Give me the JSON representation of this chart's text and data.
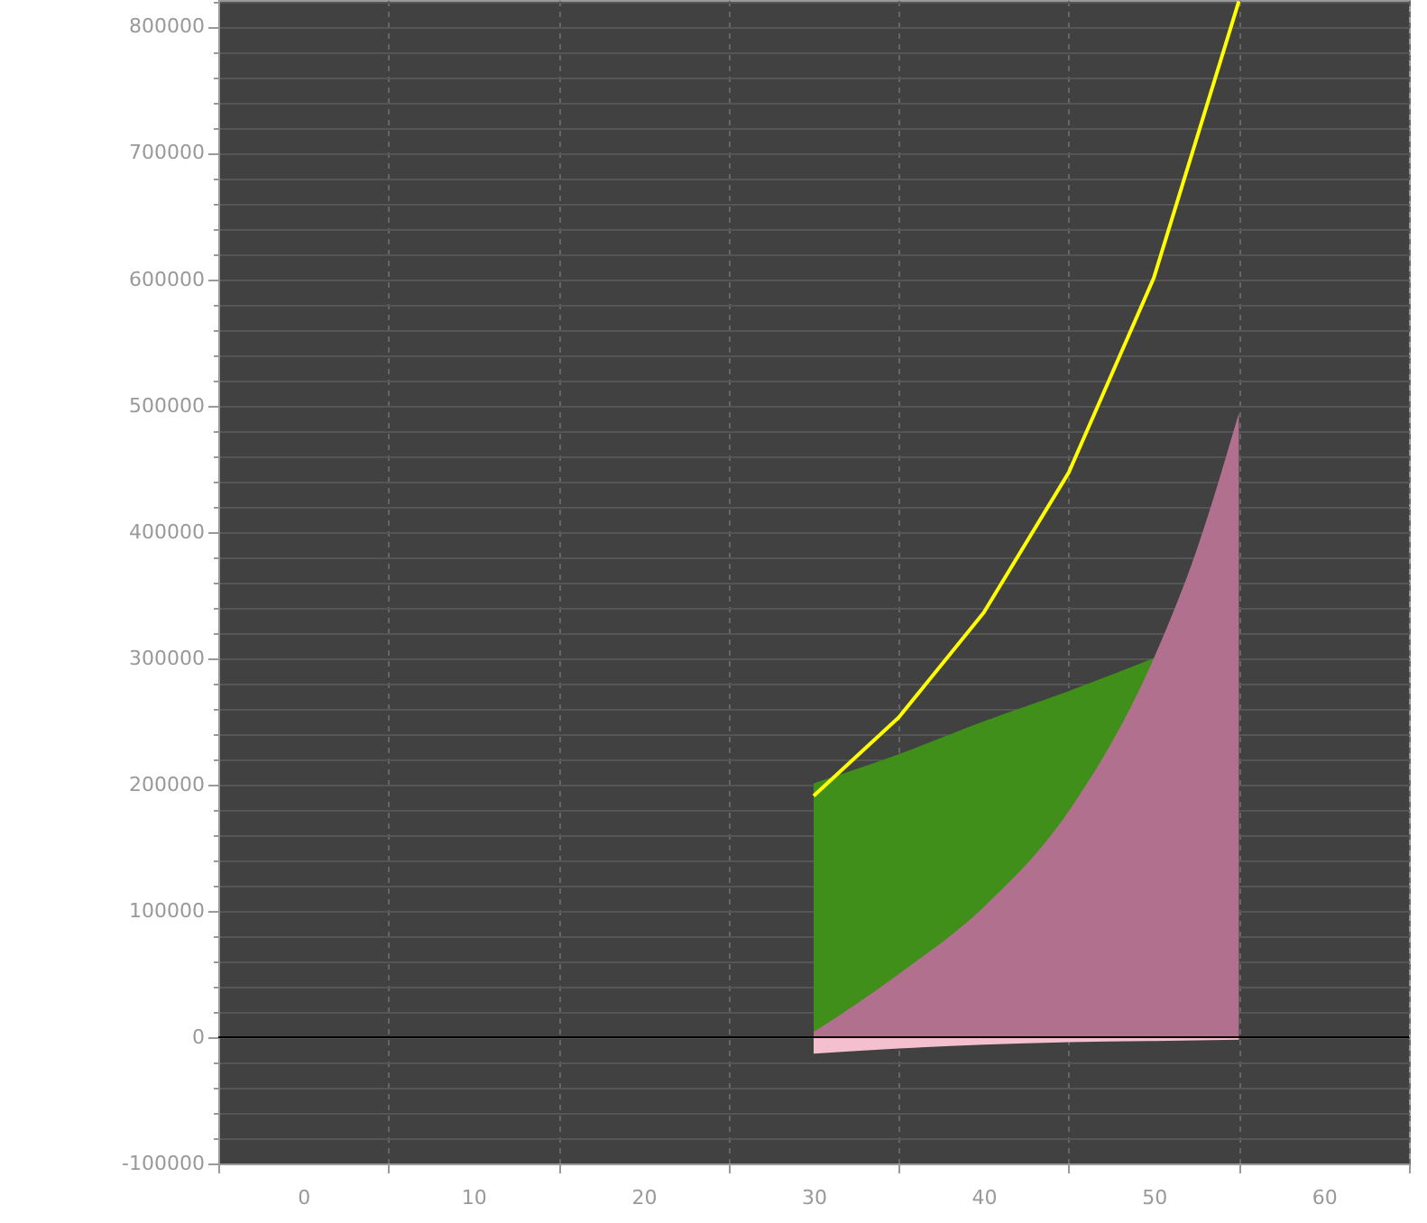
{
  "chart_data": {
    "type": "area",
    "xlim": [
      -5,
      65
    ],
    "xticks": [
      {
        "value": -5,
        "label": null
      },
      0,
      {
        "value": 5,
        "label": null
      },
      10,
      {
        "value": 15,
        "label": null
      },
      20,
      {
        "value": 25,
        "label": null
      },
      30,
      {
        "value": 35,
        "label": null
      },
      40,
      {
        "value": 45,
        "label": null
      },
      50,
      {
        "value": 55,
        "label": null
      },
      60,
      {
        "value": 65,
        "label": null
      }
    ],
    "ylim": [
      -100000,
      821000
    ],
    "yticks": [
      -100000,
      {
        "value": -80000,
        "label": null
      },
      {
        "value": -60000,
        "label": null
      },
      {
        "value": -40000,
        "label": null
      },
      {
        "value": -20000,
        "label": null
      },
      0,
      {
        "value": 20000,
        "label": null
      },
      {
        "value": 40000,
        "label": null
      },
      {
        "value": 60000,
        "label": null
      },
      {
        "value": 80000,
        "label": null
      },
      100000,
      {
        "value": 120000,
        "label": null
      },
      {
        "value": 140000,
        "label": null
      },
      {
        "value": 160000,
        "label": null
      },
      {
        "value": 180000,
        "label": null
      },
      200000,
      {
        "value": 220000,
        "label": null
      },
      {
        "value": 240000,
        "label": null
      },
      {
        "value": 260000,
        "label": null
      },
      {
        "value": 280000,
        "label": null
      },
      300000,
      {
        "value": 320000,
        "label": null
      },
      {
        "value": 340000,
        "label": null
      },
      {
        "value": 360000,
        "label": null
      },
      {
        "value": 380000,
        "label": null
      },
      400000,
      {
        "value": 420000,
        "label": null
      },
      {
        "value": 440000,
        "label": null
      },
      {
        "value": 460000,
        "label": null
      },
      {
        "value": 480000,
        "label": null
      },
      500000,
      {
        "value": 520000,
        "label": null
      },
      {
        "value": 540000,
        "label": null
      },
      {
        "value": 560000,
        "label": null
      },
      {
        "value": 580000,
        "label": null
      },
      600000,
      {
        "value": 620000,
        "label": null
      },
      {
        "value": 640000,
        "label": null
      },
      {
        "value": 660000,
        "label": null
      },
      {
        "value": 680000,
        "label": null
      },
      700000,
      {
        "value": 720000,
        "label": null
      },
      {
        "value": 740000,
        "label": null
      },
      {
        "value": 760000,
        "label": null
      },
      {
        "value": 780000,
        "label": null
      },
      800000,
      {
        "value": 820000,
        "label": null
      }
    ],
    "grid": true,
    "series": [
      {
        "color": "#3f8f1a",
        "x": [
          30,
          35,
          40,
          45,
          50
        ],
        "values": [
          201000,
          224000,
          250000,
          274000,
          300000
        ]
      },
      {
        "color": "#b0708e",
        "x": [
          30,
          35,
          40,
          45,
          50,
          52.5,
          55
        ],
        "values": [
          4000,
          50000,
          103000,
          179000,
          300000,
          385000,
          494000
        ]
      },
      {
        "color": "#f4c0d0",
        "x": [
          30,
          35,
          40,
          45,
          50,
          55
        ],
        "values": [
          -13000,
          -9000,
          -6000,
          -4000,
          -3000,
          -2000
        ]
      },
      {
        "type": "line",
        "color": "#ffff00",
        "x": [
          30,
          35,
          40,
          45,
          50,
          55
        ],
        "values": [
          191000,
          253000,
          336000,
          447000,
          601000,
          820000
        ]
      }
    ],
    "ref_lines": [
      {
        "axis": "y",
        "value": 0,
        "color": "#000000"
      }
    ]
  }
}
